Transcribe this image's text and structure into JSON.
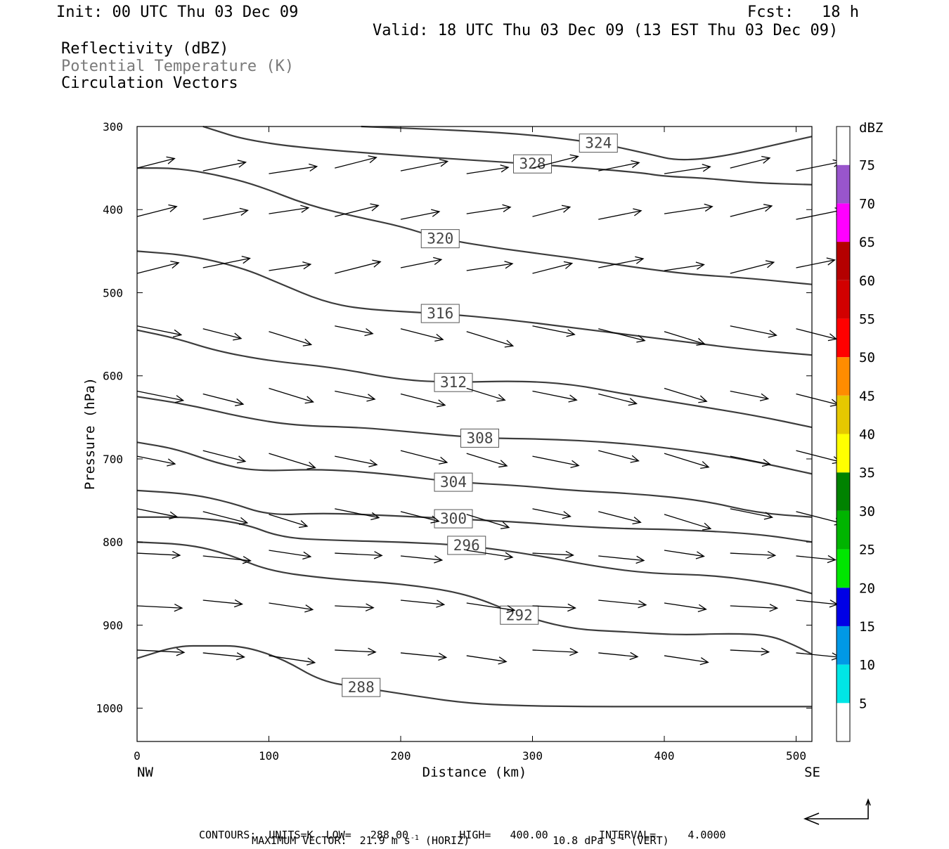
{
  "header": {
    "init": "Init: 00 UTC Thu 03 Dec 09",
    "fcst": "Fcst:   18 h",
    "valid": "Valid: 18 UTC Thu 03 Dec 09 (13 EST Thu 03 Dec 09)",
    "field1": "Reflectivity (dBZ)",
    "field2": "Potential Temperature (K)",
    "field3": "Circulation Vectors"
  },
  "footer": {
    "max_vector_prefix": "MAXIMUM VECTOR:  21.9 m s",
    "max_vector_horiz_suffix": " (HORIZ)",
    "max_vector_vert_value": "10.8 dPa s",
    "max_vector_vert_suffix": " (VERT)",
    "superscript": "-1",
    "contours": "CONTOURS:  UNITS=K  LOW=   288.00        HIGH=   400.00        INTERVAL=     4.0000"
  },
  "chart_data": {
    "type": "cross-section",
    "xlabel": "Distance (km)",
    "ylabel": "Pressure (hPa)",
    "xlim": [
      0,
      512
    ],
    "ylim": [
      1040,
      300
    ],
    "x_ticks": [
      0,
      100,
      200,
      300,
      400,
      500
    ],
    "y_ticks": [
      300,
      400,
      500,
      600,
      700,
      800,
      900,
      1000
    ],
    "x_end_labels": {
      "left": "NW",
      "right": "SE"
    },
    "colorbar": {
      "title": "dBZ",
      "levels": [
        5,
        10,
        15,
        20,
        25,
        30,
        35,
        40,
        45,
        50,
        55,
        60,
        65,
        70,
        75
      ],
      "colors": [
        "#ffffff",
        "#00e6e6",
        "#0099e6",
        "#0000e6",
        "#00e600",
        "#00b400",
        "#008200",
        "#ffff00",
        "#e6c800",
        "#ff8c00",
        "#ff0000",
        "#d20000",
        "#b40000",
        "#ff00ff",
        "#9955cc",
        "#ffffff"
      ]
    },
    "theta_contours": [
      {
        "value": 328,
        "points": [
          [
            50,
            300
          ],
          [
            60,
            305
          ],
          [
            80,
            315
          ],
          [
            120,
            325
          ],
          [
            200,
            335
          ],
          [
            300,
            345
          ],
          [
            380,
            355
          ],
          [
            400,
            360
          ],
          [
            430,
            362
          ],
          [
            470,
            368
          ],
          [
            512,
            370
          ]
        ]
      },
      {
        "value": 324,
        "points": [
          [
            170,
            300
          ],
          [
            250,
            305
          ],
          [
            300,
            310
          ],
          [
            350,
            320
          ],
          [
            380,
            330
          ],
          [
            420,
            345
          ],
          [
            512,
            312
          ]
        ]
      },
      {
        "value": 320,
        "points": [
          [
            0,
            350
          ],
          [
            30,
            350
          ],
          [
            60,
            358
          ],
          [
            90,
            370
          ],
          [
            130,
            395
          ],
          [
            170,
            410
          ],
          [
            200,
            420
          ],
          [
            230,
            435
          ],
          [
            280,
            448
          ],
          [
            330,
            458
          ],
          [
            380,
            470
          ],
          [
            420,
            478
          ],
          [
            460,
            482
          ],
          [
            512,
            490
          ]
        ]
      },
      {
        "value": 316,
        "points": [
          [
            0,
            450
          ],
          [
            40,
            455
          ],
          [
            80,
            470
          ],
          [
            110,
            490
          ],
          [
            140,
            510
          ],
          [
            170,
            520
          ],
          [
            230,
            525
          ],
          [
            280,
            532
          ],
          [
            330,
            542
          ],
          [
            380,
            552
          ],
          [
            420,
            560
          ],
          [
            460,
            568
          ],
          [
            512,
            575
          ]
        ]
      },
      {
        "value": 312,
        "points": [
          [
            0,
            545
          ],
          [
            30,
            555
          ],
          [
            60,
            570
          ],
          [
            100,
            582
          ],
          [
            150,
            590
          ],
          [
            200,
            605
          ],
          [
            240,
            608
          ],
          [
            290,
            606
          ],
          [
            330,
            610
          ],
          [
            370,
            622
          ],
          [
            420,
            635
          ],
          [
            470,
            648
          ],
          [
            512,
            662
          ]
        ]
      },
      {
        "value": 308,
        "points": [
          [
            0,
            625
          ],
          [
            40,
            635
          ],
          [
            80,
            650
          ],
          [
            120,
            660
          ],
          [
            170,
            662
          ],
          [
            210,
            668
          ],
          [
            260,
            675
          ],
          [
            310,
            676
          ],
          [
            360,
            680
          ],
          [
            410,
            688
          ],
          [
            460,
            700
          ],
          [
            512,
            718
          ]
        ]
      },
      {
        "value": 304,
        "points": [
          [
            0,
            680
          ],
          [
            30,
            688
          ],
          [
            60,
            705
          ],
          [
            90,
            715
          ],
          [
            140,
            712
          ],
          [
            190,
            718
          ],
          [
            240,
            728
          ],
          [
            290,
            732
          ],
          [
            330,
            738
          ],
          [
            380,
            742
          ],
          [
            430,
            750
          ],
          [
            470,
            765
          ],
          [
            512,
            770
          ]
        ]
      },
      {
        "value": 300,
        "points": [
          [
            0,
            738
          ],
          [
            40,
            742
          ],
          [
            70,
            752
          ],
          [
            100,
            768
          ],
          [
            140,
            765
          ],
          [
            190,
            768
          ],
          [
            240,
            772
          ],
          [
            290,
            776
          ],
          [
            330,
            781
          ],
          [
            370,
            784
          ],
          [
            410,
            785
          ],
          [
            470,
            790
          ],
          [
            512,
            800
          ]
        ]
      },
      {
        "value": 296,
        "points": [
          [
            0,
            770
          ],
          [
            40,
            770
          ],
          [
            80,
            777
          ],
          [
            110,
            795
          ],
          [
            150,
            798
          ],
          [
            200,
            800
          ],
          [
            250,
            804
          ],
          [
            300,
            815
          ],
          [
            350,
            830
          ],
          [
            390,
            838
          ],
          [
            440,
            840
          ],
          [
            490,
            852
          ],
          [
            512,
            862
          ]
        ]
      },
      {
        "value": 292,
        "points": [
          [
            0,
            800
          ],
          [
            40,
            803
          ],
          [
            70,
            815
          ],
          [
            100,
            835
          ],
          [
            150,
            845
          ],
          [
            200,
            850
          ],
          [
            250,
            862
          ],
          [
            290,
            888
          ],
          [
            330,
            905
          ],
          [
            370,
            908
          ],
          [
            410,
            912
          ],
          [
            450,
            910
          ],
          [
            480,
            912
          ],
          [
            500,
            925
          ],
          [
            512,
            935
          ]
        ]
      },
      {
        "value": 288,
        "points": [
          [
            0,
            940
          ],
          [
            30,
            925
          ],
          [
            55,
            925
          ],
          [
            80,
            925
          ],
          [
            110,
            940
          ],
          [
            140,
            968
          ],
          [
            170,
            975
          ],
          [
            210,
            985
          ],
          [
            250,
            994
          ],
          [
            290,
            997
          ],
          [
            340,
            998
          ],
          [
            400,
            998
          ],
          [
            512,
            998
          ]
        ]
      }
    ]
  }
}
